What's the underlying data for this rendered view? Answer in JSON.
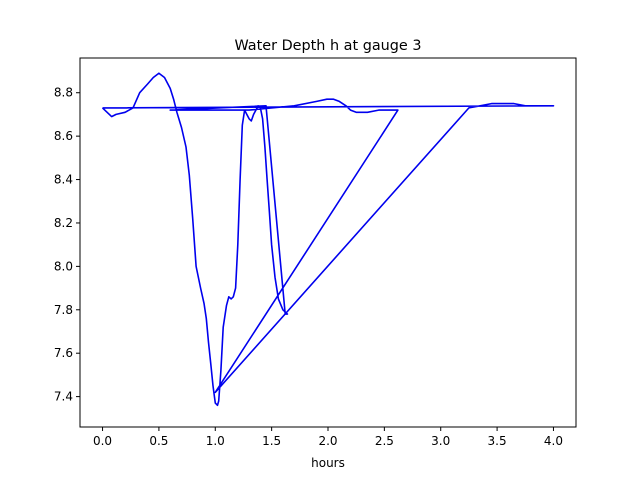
{
  "chart_data": {
    "type": "line",
    "title": "Water Depth h at gauge 3",
    "xlabel": "hours",
    "ylabel": "",
    "xlim": [
      -0.2,
      4.2
    ],
    "ylim": [
      7.26,
      8.96
    ],
    "xticks": [
      0.0,
      0.5,
      1.0,
      1.5,
      2.0,
      2.5,
      3.0,
      3.5,
      4.0
    ],
    "xtick_labels": [
      "0.0",
      "0.5",
      "1.0",
      "1.5",
      "2.0",
      "2.5",
      "3.0",
      "3.5",
      "4.0"
    ],
    "yticks": [
      7.4,
      7.6,
      7.8,
      8.0,
      8.2,
      8.4,
      8.6,
      8.8
    ],
    "ytick_labels": [
      "7.4",
      "7.6",
      "7.8",
      "8.0",
      "8.2",
      "8.4",
      "8.6",
      "8.8"
    ],
    "grid": false,
    "series": [
      {
        "color": "#0000ee",
        "x": [
          0.0,
          0.08,
          0.12,
          0.2,
          0.27,
          0.33,
          0.4,
          0.45,
          0.5,
          0.55,
          0.6,
          0.63,
          0.66,
          0.7,
          0.74,
          0.77,
          0.8,
          0.83,
          0.87,
          0.9,
          0.92,
          0.94,
          0.96,
          0.98,
          1.0,
          1.02,
          1.03,
          1.05,
          1.07,
          1.1,
          1.12,
          1.14,
          1.16,
          1.18,
          1.2,
          1.22,
          1.24,
          1.26,
          1.28,
          1.3,
          1.32,
          1.34,
          1.36,
          1.38,
          1.4,
          1.42,
          1.44,
          1.46,
          1.48,
          1.5,
          1.53,
          1.56,
          1.6,
          1.64,
          1.62,
          1.45,
          0.6,
          1.3,
          1.7,
          1.9,
          1.99,
          2.05,
          2.1,
          2.16,
          2.2,
          2.25,
          2.35,
          2.45,
          2.55,
          2.62,
          1.0,
          3.25,
          3.35,
          3.45,
          3.56,
          3.65,
          3.75,
          3.85,
          4.0,
          0.0
        ],
        "y": [
          8.73,
          8.69,
          8.7,
          8.71,
          8.73,
          8.8,
          8.84,
          8.87,
          8.89,
          8.87,
          8.82,
          8.77,
          8.71,
          8.64,
          8.55,
          8.42,
          8.22,
          8.0,
          7.9,
          7.83,
          7.76,
          7.65,
          7.55,
          7.45,
          7.37,
          7.36,
          7.38,
          7.52,
          7.72,
          7.82,
          7.86,
          7.85,
          7.86,
          7.9,
          8.1,
          8.4,
          8.65,
          8.72,
          8.7,
          8.68,
          8.67,
          8.7,
          8.72,
          8.74,
          8.73,
          8.68,
          8.55,
          8.4,
          8.25,
          8.1,
          7.95,
          7.85,
          7.8,
          7.78,
          7.78,
          8.74,
          8.72,
          8.72,
          8.74,
          8.76,
          8.77,
          8.77,
          8.76,
          8.74,
          8.72,
          8.71,
          8.71,
          8.72,
          8.72,
          8.72,
          7.42,
          8.73,
          8.74,
          8.75,
          8.75,
          8.75,
          8.74,
          8.74,
          8.74,
          8.73
        ]
      }
    ]
  }
}
